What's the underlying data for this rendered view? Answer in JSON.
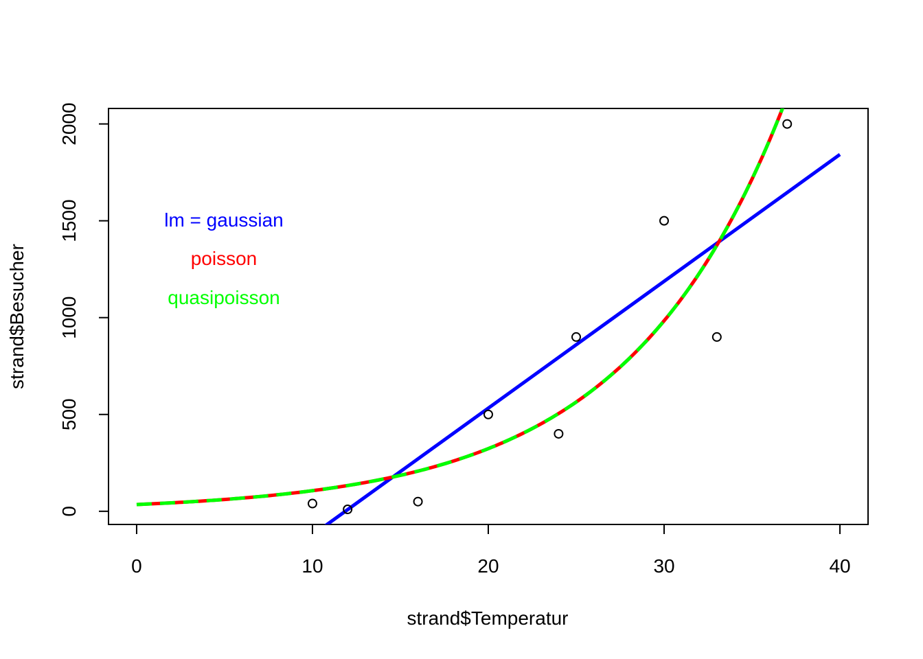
{
  "chart_data": {
    "type": "scatter",
    "title": "",
    "xlabel": "strand$Temperatur",
    "ylabel": "strand$Besucher",
    "xlim": [
      -1.6,
      41.6
    ],
    "ylim": [
      -68,
      2080
    ],
    "x_ticks": [
      "0",
      "10",
      "20",
      "30",
      "40"
    ],
    "x_tick_values": [
      0,
      10,
      20,
      30,
      40
    ],
    "y_ticks": [
      "0",
      "500",
      "1000",
      "1500",
      "2000"
    ],
    "y_tick_values": [
      0,
      500,
      1000,
      1500,
      2000
    ],
    "grid": false,
    "points": [
      {
        "x": 10,
        "y": 40
      },
      {
        "x": 12,
        "y": 10
      },
      {
        "x": 16,
        "y": 50
      },
      {
        "x": 20,
        "y": 500
      },
      {
        "x": 24,
        "y": 400
      },
      {
        "x": 25,
        "y": 900
      },
      {
        "x": 30,
        "y": 1500
      },
      {
        "x": 33,
        "y": 900
      },
      {
        "x": 37,
        "y": 2000
      }
    ],
    "lines": [
      {
        "model": "lm",
        "kind": "linear",
        "color": "#0000ff",
        "x_range": [
          0,
          40
        ],
        "intercept": -777.5,
        "slope": 65.5
      },
      {
        "model": "poisson",
        "kind": "exponential",
        "color": "#ff0000",
        "dashed": false,
        "x_range": [
          0,
          40
        ],
        "a": 35,
        "b": 0.1112
      },
      {
        "model": "quasipoisson",
        "kind": "exponential",
        "color": "#00ff00",
        "dashed": true,
        "x_range": [
          0,
          40
        ],
        "a": 35,
        "b": 0.1112
      }
    ],
    "legend": {
      "placement": "top-left",
      "entries": [
        {
          "text": "lm = gaussian",
          "color": "#0000ff"
        },
        {
          "text": "poisson",
          "color": "#ff0000"
        },
        {
          "text": "quasipoisson",
          "color": "#00ff00"
        }
      ]
    }
  }
}
